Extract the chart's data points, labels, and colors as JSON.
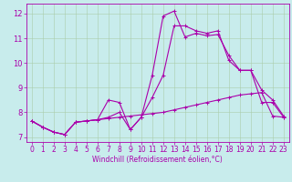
{
  "xlabel": "Windchill (Refroidissement éolien,°C)",
  "bg_color": "#c8ecec",
  "line_color": "#aa00aa",
  "grid_color": "#aaccaa",
  "xlim": [
    -0.5,
    23.5
  ],
  "ylim": [
    6.8,
    12.4
  ],
  "xticks": [
    0,
    1,
    2,
    3,
    4,
    5,
    6,
    7,
    8,
    9,
    10,
    11,
    12,
    13,
    14,
    15,
    16,
    17,
    18,
    19,
    20,
    21,
    22,
    23
  ],
  "yticks": [
    7,
    8,
    9,
    10,
    11,
    12
  ],
  "line1_x": [
    0,
    1,
    2,
    3,
    4,
    5,
    6,
    7,
    8,
    9,
    10,
    11,
    12,
    13,
    14,
    15,
    16,
    17,
    18,
    19,
    20,
    21,
    22,
    23
  ],
  "line1_y": [
    7.65,
    7.4,
    7.2,
    7.1,
    7.6,
    7.65,
    7.7,
    7.75,
    7.8,
    7.85,
    7.9,
    7.95,
    8.0,
    8.1,
    8.2,
    8.3,
    8.4,
    8.5,
    8.6,
    8.7,
    8.75,
    8.8,
    7.85,
    7.8
  ],
  "line2_x": [
    0,
    1,
    2,
    3,
    4,
    5,
    6,
    7,
    8,
    9,
    10,
    11,
    12,
    13,
    14,
    15,
    16,
    17,
    18,
    19,
    20,
    21,
    22,
    23
  ],
  "line2_y": [
    7.65,
    7.4,
    7.2,
    7.1,
    7.6,
    7.65,
    7.7,
    8.5,
    8.4,
    7.3,
    7.8,
    9.5,
    11.9,
    12.1,
    11.05,
    11.2,
    11.1,
    11.15,
    10.3,
    9.7,
    9.7,
    8.4,
    8.4,
    7.8
  ],
  "line3_x": [
    0,
    1,
    2,
    3,
    4,
    5,
    6,
    7,
    8,
    9,
    10,
    11,
    12,
    13,
    14,
    15,
    16,
    17,
    18,
    19,
    20,
    21,
    22,
    23
  ],
  "line3_y": [
    7.65,
    7.4,
    7.2,
    7.1,
    7.6,
    7.65,
    7.7,
    7.8,
    8.0,
    7.3,
    7.8,
    8.6,
    9.5,
    11.5,
    11.5,
    11.3,
    11.2,
    11.3,
    10.1,
    9.7,
    9.7,
    8.9,
    8.5,
    7.85
  ],
  "tick_fontsize": 5.5,
  "xlabel_fontsize": 5.5
}
